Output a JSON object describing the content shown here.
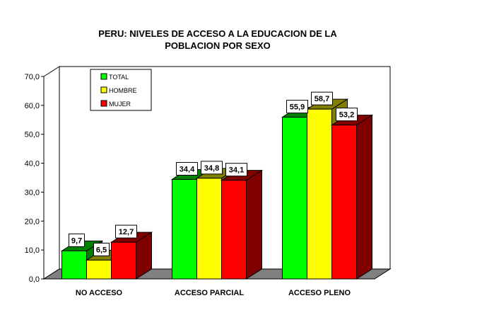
{
  "chart_data": {
    "type": "bar",
    "title_lines": [
      "PERU: NIVELES DE ACCESO A LA EDUCACION DE LA",
      "POBLACION POR SEXO"
    ],
    "categories": [
      "NO ACCESO",
      "ACCESO PARCIAL",
      "ACCESO PLENO"
    ],
    "series": [
      {
        "name": "TOTAL",
        "values": [
          9.7,
          34.4,
          55.9
        ],
        "labels": [
          "9,7",
          "34,4",
          "55,9"
        ],
        "color": "#00ff00",
        "side_color": "#008000"
      },
      {
        "name": "HOMBRE",
        "values": [
          6.5,
          34.8,
          58.7
        ],
        "labels": [
          "6,5",
          "34,8",
          "58,7"
        ],
        "color": "#ffff00",
        "side_color": "#808000"
      },
      {
        "name": "MUJER",
        "values": [
          12.7,
          34.1,
          53.2
        ],
        "labels": [
          "12,7",
          "34,1",
          "53,2"
        ],
        "color": "#ff0000",
        "side_color": "#800000"
      }
    ],
    "y_ticks": [
      "0,0",
      "10,0",
      "20,0",
      "30,0",
      "40,0",
      "50,0",
      "60,0",
      "70,0"
    ],
    "ylim": [
      0,
      70
    ],
    "legend_position": "top-left",
    "grid": false,
    "floor_color": "#808080"
  }
}
